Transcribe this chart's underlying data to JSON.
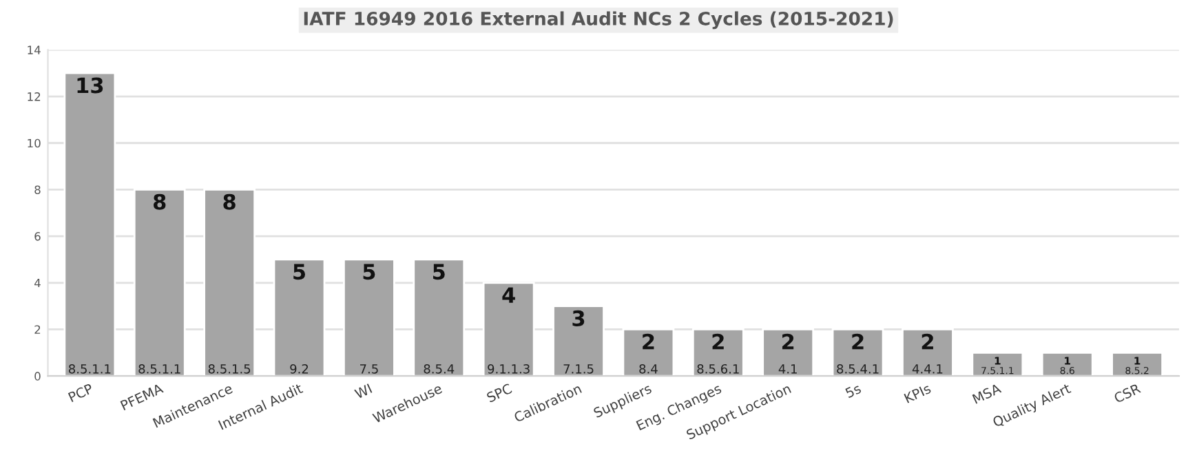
{
  "chart_data": {
    "type": "bar",
    "title": "IATF 16949 2016 External Audit NCs 2 Cycles (2015-2021)",
    "categories": [
      "PCP",
      "PFEMA",
      "Maintenance",
      "Internal Audit",
      "WI",
      "Warehouse",
      "SPC",
      "Calibration",
      "Suppliers",
      "Eng. Changes",
      "Support Location",
      "5s",
      "KPIs",
      "MSA",
      "Quality Alert",
      "CSR"
    ],
    "values": [
      13,
      8,
      8,
      5,
      5,
      5,
      4,
      3,
      2,
      2,
      2,
      2,
      2,
      1,
      1,
      1
    ],
    "color": "#a5a5a5",
    "ylim": [
      0,
      14
    ],
    "yticks": [
      0,
      2,
      4,
      6,
      8,
      10,
      12,
      14
    ],
    "grid": "y",
    "data_labels": true,
    "annotations": [
      {
        "text": "8.5.1.1",
        "x": "PCP",
        "y": 0
      },
      {
        "text": "8.5.1.1",
        "x": "PFEMA",
        "y": 0
      },
      {
        "text": "8.5.1.5",
        "x": "Maintenance",
        "y": 0
      },
      {
        "text": "9.2",
        "x": "Internal Audit",
        "y": 0
      },
      {
        "text": "7.5",
        "x": "WI",
        "y": 0
      },
      {
        "text": "8.5.4",
        "x": "Warehouse",
        "y": 0
      },
      {
        "text": "9.1.1.3",
        "x": "SPC",
        "y": 0
      },
      {
        "text": "7.1.5",
        "x": "Calibration",
        "y": 0
      },
      {
        "text": "8.4",
        "x": "Suppliers",
        "y": 0
      },
      {
        "text": "8.5.6.1",
        "x": "Eng. Changes",
        "y": 0
      },
      {
        "text": "4.1",
        "x": "Support Location",
        "y": 0
      },
      {
        "text": "8.5.4.1",
        "x": "5s",
        "y": 0
      },
      {
        "text": "4.4.1",
        "x": "KPIs",
        "y": 0
      },
      {
        "text": "7.5.1.1",
        "x": "MSA",
        "y": 0
      },
      {
        "text": "8.6",
        "x": "Quality Alert",
        "y": 0
      },
      {
        "text": "8.5.2",
        "x": "CSR",
        "y": 0
      }
    ]
  }
}
